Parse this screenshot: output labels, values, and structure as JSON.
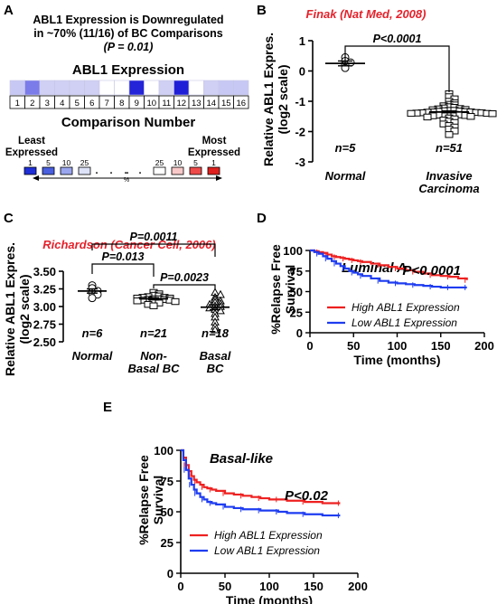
{
  "panel_letters": [
    "A",
    "B",
    "C",
    "D",
    "E"
  ],
  "panel_a": {
    "title_line1": "ABL1 Expression is Downregulated",
    "title_line2": "in ~70% (11/16) of BC Comparisons",
    "pvalue": "(P = 0.01)",
    "heatmap_title": "ABL1 Expression",
    "numbers": [
      "1",
      "2",
      "3",
      "4",
      "5",
      "6",
      "7",
      "8",
      "9",
      "10",
      "11",
      "12",
      "13",
      "14",
      "15",
      "16"
    ],
    "cell_colors": [
      "#c8c8f5",
      "#7b7bea",
      "#d0d0f4",
      "#d0d0f4",
      "#d0d0f4",
      "#d0d0f4",
      "#ffffff",
      "#ffffff",
      "#2424d8",
      "#ffffff",
      "#d0d0f4",
      "#1f1fd8",
      "#ffffff",
      "#d0d0f4",
      "#c8c8f5",
      "#c8c8f5"
    ],
    "xlabel": "Comparison Number",
    "legend_least": [
      "Least",
      "Expressed"
    ],
    "legend_most": [
      "Most",
      "Expressed"
    ],
    "legend_numbers": [
      "1",
      "5",
      "10",
      "25",
      "25",
      "10",
      "5",
      "1"
    ],
    "legend_colors": [
      "#1f2fd8",
      "#4a5fe0",
      "#9aa6ee",
      "#dde2f8",
      "#ffffff",
      "#f8c8c8",
      "#ef4a4a",
      "#e0201e"
    ],
    "legend_percent": "%"
  },
  "chart_data": [
    {
      "panel": "B",
      "type": "scatter",
      "title": "Finak (Nat Med, 2008)",
      "ylabel": [
        "Relative ABL1 Expres.",
        "(log2 scale)"
      ],
      "ylim": [
        -3,
        1
      ],
      "yticks": [
        "1",
        "0",
        "-1",
        "-2",
        "-3"
      ],
      "categories": [
        "Normal",
        "Invasive Carcinoma"
      ],
      "cat_lines": [
        [
          "Normal"
        ],
        [
          "Invasive",
          "Carcinoma"
        ]
      ],
      "n_labels": [
        "n=5",
        "n=51"
      ],
      "means": [
        0.25,
        -1.35
      ],
      "sem": [
        0.08,
        0.03
      ],
      "groups": [
        {
          "marker": "circle",
          "values": [
            0.45,
            0.33,
            0.28,
            0.2,
            0.1
          ]
        },
        {
          "marker": "square",
          "values": [
            -0.75,
            -0.85,
            -0.92,
            -1.0,
            -1.05,
            -1.1,
            -1.12,
            -1.15,
            -1.18,
            -1.2,
            -1.22,
            -1.24,
            -1.25,
            -1.27,
            -1.28,
            -1.3,
            -1.3,
            -1.31,
            -1.32,
            -1.33,
            -1.34,
            -1.35,
            -1.35,
            -1.36,
            -1.37,
            -1.38,
            -1.38,
            -1.39,
            -1.4,
            -1.4,
            -1.41,
            -1.42,
            -1.43,
            -1.44,
            -1.45,
            -1.46,
            -1.47,
            -1.48,
            -1.5,
            -1.52,
            -1.55,
            -1.58,
            -1.62,
            -1.66,
            -1.7,
            -1.75,
            -1.8,
            -1.85,
            -1.92,
            -1.98,
            -2.1
          ]
        }
      ],
      "comparisons": [
        {
          "from": 0,
          "to": 1,
          "label": "P<0.0001"
        }
      ]
    },
    {
      "panel": "C",
      "type": "scatter",
      "title": "Richardson (Cancer Cell, 2006)",
      "ylabel": [
        "Relative ABL1 Expres.",
        "(log2 scale)"
      ],
      "ylim": [
        2.5,
        3.5
      ],
      "yticks": [
        "3.50",
        "3.25",
        "3.00",
        "2.75",
        "2.50"
      ],
      "categories": [
        "Normal",
        "Non-Basal BC",
        "Basal BC"
      ],
      "cat_lines": [
        [
          "Normal"
        ],
        [
          "Non-",
          "Basal BC"
        ],
        [
          "Basal",
          "BC"
        ]
      ],
      "n_labels": [
        "n=6",
        "n=21",
        "n=18"
      ],
      "means": [
        3.22,
        3.11,
        2.99
      ],
      "sem": [
        0.03,
        0.015,
        0.035
      ],
      "groups": [
        {
          "marker": "circle",
          "values": [
            3.3,
            3.26,
            3.22,
            3.2,
            3.17,
            3.12
          ]
        },
        {
          "marker": "square",
          "values": [
            3.2,
            3.18,
            3.16,
            3.15,
            3.14,
            3.13,
            3.13,
            3.12,
            3.12,
            3.11,
            3.11,
            3.1,
            3.1,
            3.09,
            3.09,
            3.08,
            3.07,
            3.06,
            3.05,
            3.03,
            3.01
          ]
        },
        {
          "marker": "triangle",
          "values": [
            3.2,
            3.17,
            3.13,
            3.1,
            3.08,
            3.06,
            3.04,
            3.03,
            3.01,
            3.0,
            2.98,
            2.96,
            2.94,
            2.9,
            2.85,
            2.78,
            2.72,
            2.67
          ]
        }
      ],
      "comparisons": [
        {
          "from": 0,
          "to": 1,
          "label": "P=0.013"
        },
        {
          "from": 1,
          "to": 2,
          "label": "P=0.0023"
        },
        {
          "from": 0,
          "to": 2,
          "label": "P=0.0011"
        }
      ]
    },
    {
      "panel": "D",
      "type": "line",
      "title": "Luminal A",
      "ylabel": [
        "%Relapse Free",
        "Survival"
      ],
      "xlabel": "Time (months)",
      "xlim": [
        0,
        200
      ],
      "ylim": [
        0,
        100
      ],
      "xticks": [
        0,
        50,
        100,
        150,
        200
      ],
      "yticks": [
        0,
        25,
        50,
        75,
        100
      ],
      "pvalue": "P<0.0001",
      "legend_position": "bottom-left",
      "series": [
        {
          "name": "High ABL1 Expression",
          "color": "#ee2020",
          "x": [
            0,
            5,
            10,
            15,
            20,
            25,
            30,
            35,
            40,
            45,
            50,
            55,
            60,
            70,
            80,
            90,
            100,
            110,
            120,
            130,
            140,
            150,
            160,
            170,
            180
          ],
          "y": [
            100,
            99,
            98,
            97,
            95,
            93,
            92,
            91,
            90,
            89,
            88,
            87,
            86,
            84,
            82,
            80,
            78,
            76,
            74,
            72,
            70,
            69,
            68,
            66,
            64
          ]
        },
        {
          "name": "Low ABL1 Expression",
          "color": "#1e3cf0",
          "x": [
            0,
            5,
            10,
            15,
            20,
            25,
            30,
            35,
            40,
            45,
            50,
            55,
            60,
            70,
            80,
            90,
            100,
            110,
            120,
            130,
            140,
            150,
            160,
            170,
            180
          ],
          "y": [
            100,
            98,
            96,
            93,
            90,
            87,
            84,
            81,
            78,
            75,
            73,
            71,
            69,
            66,
            63,
            61,
            60,
            59,
            58,
            57,
            56,
            55,
            55,
            55,
            55
          ]
        }
      ]
    },
    {
      "panel": "E",
      "type": "line",
      "title": "Basal-like",
      "ylabel": [
        "%Relapse Free",
        "Survival"
      ],
      "xlabel": "Time (months)",
      "xlim": [
        0,
        200
      ],
      "ylim": [
        0,
        100
      ],
      "xticks": [
        0,
        50,
        100,
        150,
        200
      ],
      "yticks": [
        0,
        25,
        50,
        75,
        100
      ],
      "pvalue": "P<0.02",
      "legend_position": "bottom-left",
      "series": [
        {
          "name": "High ABL1 Expression",
          "color": "#ee2020",
          "x": [
            0,
            3,
            6,
            9,
            12,
            15,
            18,
            22,
            26,
            30,
            35,
            40,
            50,
            60,
            70,
            80,
            90,
            100,
            110,
            120,
            140,
            160,
            180
          ],
          "y": [
            100,
            94,
            88,
            83,
            79,
            76,
            74,
            72,
            70,
            69,
            68,
            67,
            65,
            64,
            63,
            62,
            61,
            60,
            60,
            59,
            58,
            57,
            57
          ]
        },
        {
          "name": "Low ABL1 Expression",
          "color": "#1e3cf0",
          "x": [
            0,
            3,
            6,
            9,
            12,
            15,
            18,
            22,
            26,
            30,
            35,
            40,
            50,
            60,
            70,
            80,
            90,
            100,
            110,
            120,
            140,
            160,
            180
          ],
          "y": [
            100,
            92,
            84,
            77,
            72,
            68,
            65,
            62,
            60,
            58,
            57,
            56,
            54,
            53,
            52,
            52,
            51,
            51,
            50,
            49,
            48,
            47,
            47
          ]
        }
      ]
    }
  ]
}
